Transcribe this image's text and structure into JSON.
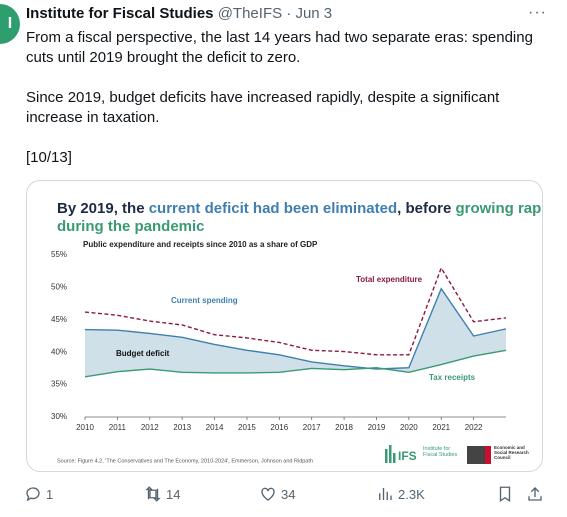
{
  "tweet": {
    "name": "Institute for Fiscal Studies",
    "handle": "@TheIFS",
    "date": "· Jun 3",
    "avatar_letter": "I",
    "paragraphs": [
      "From a fiscal perspective, the last 14 years had two separate eras: spending cuts until 2019 brought the deficit to zero.",
      "Since 2019, budget deficits have increased rapidly, despite a significant increase in taxation.",
      "[10/13]"
    ],
    "replies": "1",
    "retweets": "14",
    "likes": "34",
    "views": "2.3K"
  },
  "chart_data": {
    "type": "line",
    "title_lines": [
      [
        {
          "text": "By 2019, the ",
          "color": "#1f2a44"
        },
        {
          "text": "current deficit had been eliminated",
          "color": "#3f7fb0"
        },
        {
          "text": ", before ",
          "color": "#1f2a44"
        },
        {
          "text": "growing rapidly",
          "color": "#3a9a73"
        }
      ],
      [
        {
          "text": "during the pandemic",
          "color": "#3a9a73"
        }
      ]
    ],
    "subtitle": "Public expenditure and receipts since 2010 as a share of GDP",
    "x": [
      2010,
      2011,
      2012,
      2013,
      2014,
      2015,
      2016,
      2017,
      2018,
      2019,
      2020,
      2021,
      2022,
      2023
    ],
    "series": [
      {
        "name": "Total expenditure",
        "color": "#8b1a3a",
        "dashed": true,
        "values": [
          46.2,
          45.7,
          44.8,
          44.2,
          42.7,
          42.2,
          41.5,
          40.3,
          40.1,
          39.6,
          39.6,
          53.0,
          44.7,
          45.3
        ]
      },
      {
        "name": "Current spending",
        "color": "#3f7fb0",
        "values": [
          43.5,
          43.4,
          42.9,
          42.3,
          41.2,
          40.3,
          39.6,
          38.5,
          37.9,
          37.4,
          37.6,
          49.8,
          42.5,
          43.6
        ]
      },
      {
        "name": "Tax receipts",
        "color": "#3a9a73",
        "values": [
          36.2,
          37.0,
          37.4,
          36.9,
          36.8,
          36.8,
          36.9,
          37.5,
          37.3,
          37.6,
          36.9,
          38.1,
          39.4,
          40.3
        ]
      }
    ],
    "band_label": "Budget deficit",
    "band_color": "#cfe0e8",
    "xlim": [
      2010,
      2023
    ],
    "xticks": [
      2010,
      2011,
      2012,
      2013,
      2014,
      2015,
      2016,
      2017,
      2018,
      2019,
      2020,
      2021,
      2022
    ],
    "ylim": [
      30,
      55
    ],
    "yticks": [
      {
        "value": 30,
        "label": "30%"
      },
      {
        "value": 35,
        "label": "35%"
      },
      {
        "value": 40,
        "label": "40%"
      },
      {
        "value": 45,
        "label": "45%"
      },
      {
        "value": 50,
        "label": "50%"
      },
      {
        "value": 55,
        "label": "55%"
      }
    ],
    "grid": false,
    "source": "Source: Figure 4.2, 'The Conservatives and The Economy, 2010-2024', Emmerson, Johnson and Ridpath",
    "logo_ifs": "IFS",
    "logo_ifs_sub": "Institute for Fiscal Studies",
    "logo_esrc": "Economic and Social Research Council"
  }
}
